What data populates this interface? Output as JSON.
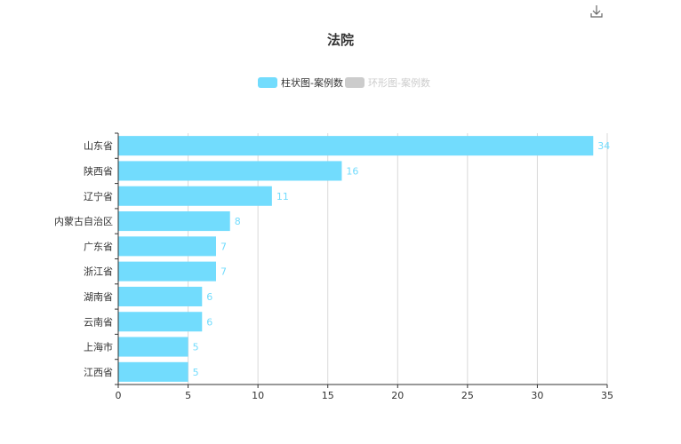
{
  "toolbar": {
    "download_icon": "download-icon"
  },
  "colors": {
    "bar": "#72dcfd",
    "legend_inactive": "#cccccc",
    "grid": "#d9d9d9",
    "axis": "#333333",
    "text": "#333333"
  },
  "legend": [
    {
      "label": "柱状图-案例数",
      "active": true
    },
    {
      "label": "环形图-案例数",
      "active": false
    }
  ],
  "chart_data": {
    "type": "bar",
    "orientation": "horizontal",
    "title": "法院",
    "categories": [
      "山东省",
      "陕西省",
      "辽宁省",
      "内蒙古自治区",
      "广东省",
      "浙江省",
      "湖南省",
      "云南省",
      "上海市",
      "江西省"
    ],
    "values": [
      34,
      16,
      11,
      8,
      7,
      7,
      6,
      6,
      5,
      5
    ],
    "xlim": [
      0,
      35
    ],
    "xticks": [
      0,
      5,
      10,
      15,
      20,
      25,
      30,
      35
    ],
    "grid": true,
    "legend_position": "top-center",
    "series": [
      {
        "name": "柱状图-案例数",
        "values": [
          34,
          16,
          11,
          8,
          7,
          7,
          6,
          6,
          5,
          5
        ]
      }
    ]
  }
}
